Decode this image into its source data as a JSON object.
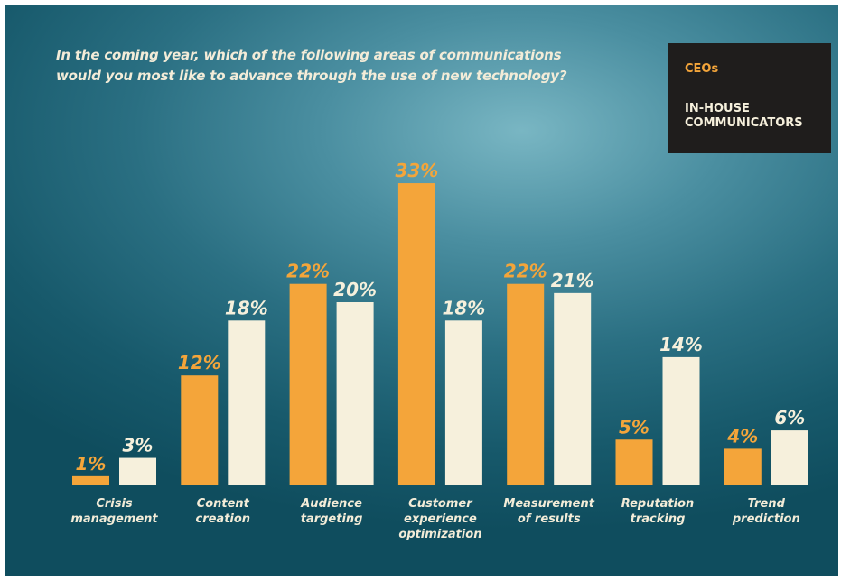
{
  "chart_data": {
    "type": "bar",
    "title": "In the coming year, which of the following areas of communications would you most like to advance through the use of new technology?",
    "categories": [
      [
        "Crisis",
        "management"
      ],
      [
        "Content",
        "creation"
      ],
      [
        "Audience",
        "targeting"
      ],
      [
        "Customer",
        "experience",
        "optimization"
      ],
      [
        "Measurement",
        "of results"
      ],
      [
        "Reputation",
        "tracking"
      ],
      [
        "Trend",
        "prediction"
      ]
    ],
    "series": [
      {
        "name": "CEOs",
        "color": "#f4a53a",
        "values": [
          1,
          12,
          22,
          33,
          22,
          5,
          4
        ],
        "labels": [
          "1%",
          "12%",
          "22%",
          "33%",
          "22%",
          "5%",
          "4%"
        ]
      },
      {
        "name": "IN-HOUSE COMMUNICATORS",
        "color": "#f6f0dc",
        "values": [
          3,
          18,
          20,
          18,
          21,
          14,
          6
        ],
        "labels": [
          "3%",
          "18%",
          "20%",
          "18%",
          "21%",
          "14%",
          "6%"
        ]
      }
    ],
    "ylim": [
      0,
      33
    ],
    "legend": {
      "position": "top-right"
    },
    "grid": false
  },
  "legend": {
    "ceo_label": "CEOs",
    "inhouse_label": "IN-HOUSE COMMUNICATORS"
  }
}
